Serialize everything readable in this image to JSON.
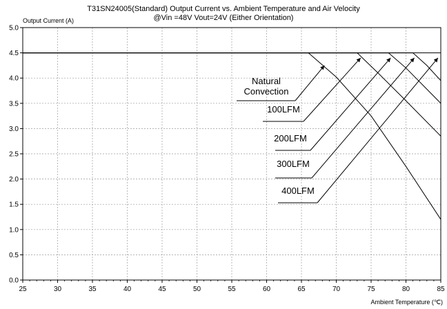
{
  "chart_data": {
    "type": "line",
    "title": "T31SN24005(Standard) Output Current vs. Ambient Temperature and Air Velocity",
    "subtitle": "@Vin =48V Vout=24V (Either Orientation)",
    "xlabel": "Ambient Temperature  (℃)",
    "ylabel": "Output Current (A)",
    "xlim": [
      25,
      85
    ],
    "ylim": [
      0,
      5
    ],
    "xticks": [
      "25",
      "30",
      "35",
      "40",
      "45",
      "50",
      "55",
      "60",
      "65",
      "70",
      "75",
      "80",
      "85"
    ],
    "yticks": [
      "0.0",
      "0.5",
      "1.0",
      "1.5",
      "2.0",
      "2.5",
      "3.0",
      "3.5",
      "4.0",
      "4.5",
      "5.0"
    ],
    "grid": true,
    "series": [
      {
        "name": "Natural Convection",
        "x": [
          25,
          66,
          70,
          75,
          80,
          85
        ],
        "y": [
          4.5,
          4.5,
          4.02,
          3.25,
          2.25,
          1.2
        ]
      },
      {
        "name": "100LFM",
        "x": [
          25,
          73,
          76,
          80,
          85
        ],
        "y": [
          4.5,
          4.5,
          4.1,
          3.55,
          2.85
        ]
      },
      {
        "name": "200LFM",
        "x": [
          25,
          77.5,
          80,
          85
        ],
        "y": [
          4.5,
          4.5,
          4.2,
          3.5
        ]
      },
      {
        "name": "300LFM",
        "x": [
          25,
          81,
          83,
          85
        ],
        "y": [
          4.5,
          4.5,
          4.25,
          3.95
        ]
      },
      {
        "name": "400LFM",
        "x": [
          25,
          85
        ],
        "y": [
          4.5,
          4.5
        ]
      }
    ],
    "annotations": [
      {
        "lines": [
          "Natural",
          "Convection"
        ],
        "target": [
          68.3,
          4.25
        ]
      },
      {
        "lines": [
          "100LFM"
        ],
        "target": [
          73.5,
          4.4
        ]
      },
      {
        "lines": [
          "200LFM"
        ],
        "target": [
          77.8,
          4.4
        ]
      },
      {
        "lines": [
          "300LFM"
        ],
        "target": [
          81.2,
          4.4
        ]
      },
      {
        "lines": [
          "400LFM"
        ],
        "target": [
          84.6,
          4.4
        ]
      }
    ]
  }
}
